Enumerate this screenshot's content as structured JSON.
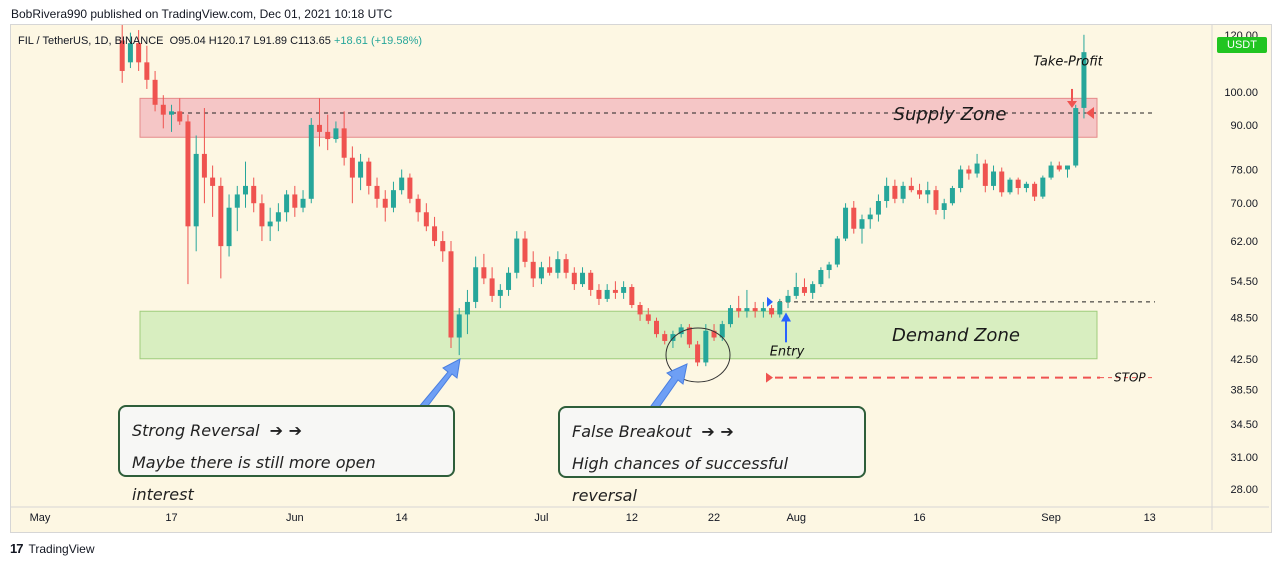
{
  "header": {
    "published_by": "BobRivera990 published on TradingView.com, Dec 01, 2021 10:18 UTC"
  },
  "ticker_line": {
    "symbol": "FIL / TetherUS, 1D, BINANCE",
    "ohlc": "O95.04 H120.17 L91.89 C113.65",
    "change": "+18.61 (+19.58%)"
  },
  "price_badge": "USDT",
  "footer": {
    "logo_glyph": "17",
    "brand": "TradingView"
  },
  "annotations": {
    "supply_zone": "Supply Zone",
    "demand_zone": "Demand Zone",
    "take_profit": "Take-Profit",
    "entry": "Entry",
    "stop": "STOP",
    "strong_reversal_title": "Strong Reversal",
    "strong_reversal_body": "Maybe there is still more open interest",
    "false_breakout_title": "False Breakout",
    "false_breakout_body": "High chances of successful reversal",
    "arrow_glyphs": "➔ ➔"
  },
  "colors": {
    "up": "#26a69a",
    "down": "#ef5350",
    "supply_fill": "#f5c6c6",
    "demand_fill": "#d8eec0",
    "background": "#fdf7e3",
    "callout_border": "#2e5e3a",
    "pointer": "#6e9ff5"
  },
  "chart_data": {
    "type": "candlestick",
    "symbol": "FIL / TetherUS",
    "interval": "1D",
    "exchange": "BINANCE",
    "y_scale": "log",
    "ylim": [
      26.5,
      124
    ],
    "y_ticks": [
      "120.00",
      "100.00",
      "90.00",
      "78.00",
      "70.00",
      "62.00",
      "54.50",
      "48.50",
      "42.50",
      "38.50",
      "34.50",
      "31.00",
      "28.00"
    ],
    "x_ticks": [
      "May",
      "17",
      "Jun",
      "14",
      "Jul",
      "12",
      "22",
      "Aug",
      "16",
      "Sep",
      "13"
    ],
    "zones": {
      "supply": [
        86.5,
        98.0
      ],
      "demand": [
        42.5,
        49.5
      ]
    },
    "levels": {
      "supply_line": 93.5,
      "entry": 51.0,
      "stop": 40.0,
      "take_profit": 95.0
    },
    "candles": [
      {
        "date": "2021-05-11",
        "o": 118.0,
        "h": 124.0,
        "l": 103.0,
        "c": 107.0
      },
      {
        "date": "2021-05-12",
        "o": 110.0,
        "h": 121.0,
        "l": 108.0,
        "c": 117.0
      },
      {
        "date": "2021-05-13",
        "o": 117.0,
        "h": 122.0,
        "l": 107.0,
        "c": 110.0
      },
      {
        "date": "2021-05-14",
        "o": 110.0,
        "h": 116.0,
        "l": 101.0,
        "c": 104.0
      },
      {
        "date": "2021-05-15",
        "o": 104.0,
        "h": 107.0,
        "l": 94.0,
        "c": 96.0
      },
      {
        "date": "2021-05-16",
        "o": 96.0,
        "h": 99.0,
        "l": 89.0,
        "c": 93.0
      },
      {
        "date": "2021-05-17",
        "o": 93.0,
        "h": 96.0,
        "l": 88.0,
        "c": 94.0
      },
      {
        "date": "2021-05-18",
        "o": 94.0,
        "h": 98.0,
        "l": 90.0,
        "c": 91.0
      },
      {
        "date": "2021-05-19",
        "o": 91.0,
        "h": 93.0,
        "l": 54.0,
        "c": 65.0
      },
      {
        "date": "2021-05-20",
        "o": 65.0,
        "h": 87.0,
        "l": 60.0,
        "c": 82.0
      },
      {
        "date": "2021-05-21",
        "o": 82.0,
        "h": 95.0,
        "l": 70.0,
        "c": 76.0
      },
      {
        "date": "2021-05-22",
        "o": 76.0,
        "h": 79.0,
        "l": 67.0,
        "c": 74.0
      },
      {
        "date": "2021-05-23",
        "o": 74.0,
        "h": 76.0,
        "l": 55.0,
        "c": 61.0
      },
      {
        "date": "2021-05-24",
        "o": 61.0,
        "h": 72.0,
        "l": 59.0,
        "c": 69.0
      },
      {
        "date": "2021-05-25",
        "o": 69.0,
        "h": 74.0,
        "l": 64.0,
        "c": 72.0
      },
      {
        "date": "2021-05-26",
        "o": 72.0,
        "h": 80.0,
        "l": 69.0,
        "c": 74.0
      },
      {
        "date": "2021-05-27",
        "o": 74.0,
        "h": 76.0,
        "l": 68.0,
        "c": 70.0
      },
      {
        "date": "2021-05-28",
        "o": 70.0,
        "h": 72.0,
        "l": 62.0,
        "c": 65.0
      },
      {
        "date": "2021-05-29",
        "o": 65.0,
        "h": 69.0,
        "l": 62.0,
        "c": 66.0
      },
      {
        "date": "2021-05-30",
        "o": 66.0,
        "h": 70.0,
        "l": 64.0,
        "c": 68.0
      },
      {
        "date": "2021-05-31",
        "o": 68.0,
        "h": 73.0,
        "l": 66.0,
        "c": 72.0
      },
      {
        "date": "2021-06-01",
        "o": 72.0,
        "h": 74.0,
        "l": 67.0,
        "c": 69.0
      },
      {
        "date": "2021-06-02",
        "o": 69.0,
        "h": 73.0,
        "l": 68.0,
        "c": 71.0
      },
      {
        "date": "2021-06-03",
        "o": 71.0,
        "h": 92.0,
        "l": 70.0,
        "c": 90.0
      },
      {
        "date": "2021-06-04",
        "o": 90.0,
        "h": 98.0,
        "l": 84.0,
        "c": 88.0
      },
      {
        "date": "2021-06-05",
        "o": 88.0,
        "h": 93.0,
        "l": 83.0,
        "c": 86.0
      },
      {
        "date": "2021-06-06",
        "o": 86.0,
        "h": 91.0,
        "l": 85.0,
        "c": 89.0
      },
      {
        "date": "2021-06-07",
        "o": 89.0,
        "h": 94.0,
        "l": 79.0,
        "c": 81.0
      },
      {
        "date": "2021-06-08",
        "o": 81.0,
        "h": 84.0,
        "l": 70.0,
        "c": 76.0
      },
      {
        "date": "2021-06-09",
        "o": 76.0,
        "h": 82.0,
        "l": 73.0,
        "c": 80.0
      },
      {
        "date": "2021-06-10",
        "o": 80.0,
        "h": 81.0,
        "l": 72.0,
        "c": 74.0
      },
      {
        "date": "2021-06-11",
        "o": 74.0,
        "h": 76.0,
        "l": 69.0,
        "c": 71.0
      },
      {
        "date": "2021-06-12",
        "o": 71.0,
        "h": 73.0,
        "l": 66.0,
        "c": 69.0
      },
      {
        "date": "2021-06-13",
        "o": 69.0,
        "h": 75.0,
        "l": 68.0,
        "c": 73.0
      },
      {
        "date": "2021-06-14",
        "o": 73.0,
        "h": 78.0,
        "l": 72.0,
        "c": 76.0
      },
      {
        "date": "2021-06-15",
        "o": 76.0,
        "h": 77.0,
        "l": 70.0,
        "c": 71.0
      },
      {
        "date": "2021-06-16",
        "o": 71.0,
        "h": 72.0,
        "l": 66.0,
        "c": 68.0
      },
      {
        "date": "2021-06-17",
        "o": 68.0,
        "h": 70.0,
        "l": 64.0,
        "c": 65.0
      },
      {
        "date": "2021-06-18",
        "o": 65.0,
        "h": 67.0,
        "l": 61.0,
        "c": 62.0
      },
      {
        "date": "2021-06-19",
        "o": 62.0,
        "h": 64.0,
        "l": 58.0,
        "c": 60.0
      },
      {
        "date": "2021-06-20",
        "o": 60.0,
        "h": 62.0,
        "l": 44.0,
        "c": 45.5
      },
      {
        "date": "2021-06-21",
        "o": 45.5,
        "h": 50.0,
        "l": 43.0,
        "c": 49.0
      },
      {
        "date": "2021-06-22",
        "o": 49.0,
        "h": 53.0,
        "l": 46.0,
        "c": 51.0
      },
      {
        "date": "2021-06-23",
        "o": 51.0,
        "h": 59.0,
        "l": 50.0,
        "c": 57.0
      },
      {
        "date": "2021-06-24",
        "o": 57.0,
        "h": 59.5,
        "l": 54.0,
        "c": 55.0
      },
      {
        "date": "2021-06-25",
        "o": 55.0,
        "h": 57.0,
        "l": 51.0,
        "c": 52.0
      },
      {
        "date": "2021-06-26",
        "o": 52.0,
        "h": 54.0,
        "l": 50.0,
        "c": 53.0
      },
      {
        "date": "2021-06-27",
        "o": 53.0,
        "h": 57.0,
        "l": 52.0,
        "c": 56.0
      },
      {
        "date": "2021-06-28",
        "o": 56.0,
        "h": 64.0,
        "l": 55.0,
        "c": 62.5
      },
      {
        "date": "2021-06-29",
        "o": 62.5,
        "h": 64.0,
        "l": 57.0,
        "c": 58.0
      },
      {
        "date": "2021-06-30",
        "o": 58.0,
        "h": 60.0,
        "l": 53.5,
        "c": 55.0
      },
      {
        "date": "2021-07-01",
        "o": 55.0,
        "h": 58.0,
        "l": 54.0,
        "c": 57.0
      },
      {
        "date": "2021-07-02",
        "o": 57.0,
        "h": 59.0,
        "l": 55.5,
        "c": 56.0
      },
      {
        "date": "2021-07-03",
        "o": 56.0,
        "h": 60.0,
        "l": 55.0,
        "c": 58.5
      },
      {
        "date": "2021-07-04",
        "o": 58.5,
        "h": 59.5,
        "l": 55.0,
        "c": 56.0
      },
      {
        "date": "2021-07-05",
        "o": 56.0,
        "h": 57.0,
        "l": 53.0,
        "c": 54.0
      },
      {
        "date": "2021-07-06",
        "o": 54.0,
        "h": 57.0,
        "l": 53.5,
        "c": 56.0
      },
      {
        "date": "2021-07-07",
        "o": 56.0,
        "h": 56.5,
        "l": 52.0,
        "c": 53.0
      },
      {
        "date": "2021-07-08",
        "o": 53.0,
        "h": 54.0,
        "l": 50.5,
        "c": 51.5
      },
      {
        "date": "2021-07-09",
        "o": 51.5,
        "h": 54.0,
        "l": 51.0,
        "c": 53.0
      },
      {
        "date": "2021-07-10",
        "o": 53.0,
        "h": 54.5,
        "l": 51.5,
        "c": 52.5
      },
      {
        "date": "2021-07-11",
        "o": 52.5,
        "h": 54.5,
        "l": 51.5,
        "c": 53.5
      },
      {
        "date": "2021-07-12",
        "o": 53.5,
        "h": 54.0,
        "l": 50.0,
        "c": 50.5
      },
      {
        "date": "2021-07-13",
        "o": 50.5,
        "h": 51.0,
        "l": 48.0,
        "c": 49.0
      },
      {
        "date": "2021-07-14",
        "o": 49.0,
        "h": 50.0,
        "l": 47.5,
        "c": 48.0
      },
      {
        "date": "2021-07-15",
        "o": 48.0,
        "h": 48.5,
        "l": 45.5,
        "c": 46.0
      },
      {
        "date": "2021-07-16",
        "o": 46.0,
        "h": 46.5,
        "l": 44.5,
        "c": 45.0
      },
      {
        "date": "2021-07-17",
        "o": 45.0,
        "h": 46.5,
        "l": 44.0,
        "c": 46.0
      },
      {
        "date": "2021-07-18",
        "o": 46.0,
        "h": 47.5,
        "l": 45.5,
        "c": 47.0
      },
      {
        "date": "2021-07-19",
        "o": 47.0,
        "h": 47.5,
        "l": 44.0,
        "c": 44.5
      },
      {
        "date": "2021-07-20",
        "o": 44.5,
        "h": 45.0,
        "l": 41.5,
        "c": 42.0
      },
      {
        "date": "2021-07-21",
        "o": 42.0,
        "h": 47.5,
        "l": 41.5,
        "c": 46.5
      },
      {
        "date": "2021-07-22",
        "o": 46.5,
        "h": 47.5,
        "l": 45.0,
        "c": 45.5
      },
      {
        "date": "2021-07-23",
        "o": 45.5,
        "h": 48.0,
        "l": 45.0,
        "c": 47.5
      },
      {
        "date": "2021-07-24",
        "o": 47.5,
        "h": 50.5,
        "l": 47.0,
        "c": 50.0
      },
      {
        "date": "2021-07-25",
        "o": 50.0,
        "h": 52.0,
        "l": 48.5,
        "c": 49.5
      },
      {
        "date": "2021-07-26",
        "o": 49.5,
        "h": 53.0,
        "l": 48.5,
        "c": 50.0
      },
      {
        "date": "2021-07-27",
        "o": 50.0,
        "h": 51.0,
        "l": 48.5,
        "c": 49.5
      },
      {
        "date": "2021-07-28",
        "o": 49.5,
        "h": 51.0,
        "l": 48.5,
        "c": 50.0
      },
      {
        "date": "2021-07-29",
        "o": 50.0,
        "h": 50.5,
        "l": 48.5,
        "c": 49.0
      },
      {
        "date": "2021-07-30",
        "o": 49.0,
        "h": 51.5,
        "l": 48.5,
        "c": 51.0
      },
      {
        "date": "2021-07-31",
        "o": 51.0,
        "h": 53.0,
        "l": 50.0,
        "c": 52.0
      },
      {
        "date": "2021-08-01",
        "o": 52.0,
        "h": 56.0,
        "l": 51.5,
        "c": 53.5
      },
      {
        "date": "2021-08-02",
        "o": 53.5,
        "h": 55.0,
        "l": 52.0,
        "c": 52.5
      },
      {
        "date": "2021-08-03",
        "o": 52.5,
        "h": 54.5,
        "l": 51.5,
        "c": 54.0
      },
      {
        "date": "2021-08-04",
        "o": 54.0,
        "h": 57.0,
        "l": 53.5,
        "c": 56.5
      },
      {
        "date": "2021-08-05",
        "o": 56.5,
        "h": 58.0,
        "l": 55.0,
        "c": 57.5
      },
      {
        "date": "2021-08-06",
        "o": 57.5,
        "h": 63.0,
        "l": 57.0,
        "c": 62.5
      },
      {
        "date": "2021-08-07",
        "o": 62.5,
        "h": 70.0,
        "l": 62.0,
        "c": 69.0
      },
      {
        "date": "2021-08-08",
        "o": 69.0,
        "h": 70.5,
        "l": 63.5,
        "c": 64.5
      },
      {
        "date": "2021-08-09",
        "o": 64.5,
        "h": 67.5,
        "l": 61.5,
        "c": 66.5
      },
      {
        "date": "2021-08-10",
        "o": 66.5,
        "h": 69.0,
        "l": 64.5,
        "c": 67.5
      },
      {
        "date": "2021-08-11",
        "o": 67.5,
        "h": 72.0,
        "l": 66.0,
        "c": 70.5
      },
      {
        "date": "2021-08-12",
        "o": 70.5,
        "h": 76.0,
        "l": 69.0,
        "c": 74.0
      },
      {
        "date": "2021-08-13",
        "o": 74.0,
        "h": 75.5,
        "l": 70.0,
        "c": 71.0
      },
      {
        "date": "2021-08-14",
        "o": 71.0,
        "h": 75.0,
        "l": 70.0,
        "c": 74.0
      },
      {
        "date": "2021-08-15",
        "o": 74.0,
        "h": 76.0,
        "l": 72.5,
        "c": 73.0
      },
      {
        "date": "2021-08-16",
        "o": 73.0,
        "h": 74.5,
        "l": 71.0,
        "c": 72.0
      },
      {
        "date": "2021-08-17",
        "o": 72.0,
        "h": 75.0,
        "l": 70.0,
        "c": 73.0
      },
      {
        "date": "2021-08-18",
        "o": 73.0,
        "h": 74.0,
        "l": 67.5,
        "c": 68.5
      },
      {
        "date": "2021-08-19",
        "o": 68.5,
        "h": 71.0,
        "l": 66.5,
        "c": 70.0
      },
      {
        "date": "2021-08-20",
        "o": 70.0,
        "h": 74.0,
        "l": 69.5,
        "c": 73.5
      },
      {
        "date": "2021-08-21",
        "o": 73.5,
        "h": 79.0,
        "l": 72.5,
        "c": 78.0
      },
      {
        "date": "2021-08-22",
        "o": 78.0,
        "h": 79.0,
        "l": 75.5,
        "c": 77.0
      },
      {
        "date": "2021-08-23",
        "o": 77.0,
        "h": 82.0,
        "l": 76.0,
        "c": 79.5
      },
      {
        "date": "2021-08-24",
        "o": 79.5,
        "h": 80.5,
        "l": 72.5,
        "c": 74.0
      },
      {
        "date": "2021-08-25",
        "o": 74.0,
        "h": 79.0,
        "l": 73.0,
        "c": 77.5
      },
      {
        "date": "2021-08-26",
        "o": 77.5,
        "h": 78.5,
        "l": 71.5,
        "c": 72.5
      },
      {
        "date": "2021-08-27",
        "o": 72.5,
        "h": 76.0,
        "l": 72.0,
        "c": 75.5
      },
      {
        "date": "2021-08-28",
        "o": 75.5,
        "h": 76.0,
        "l": 72.0,
        "c": 73.5
      },
      {
        "date": "2021-08-29",
        "o": 73.5,
        "h": 75.0,
        "l": 72.5,
        "c": 74.5
      },
      {
        "date": "2021-08-30",
        "o": 74.5,
        "h": 75.0,
        "l": 70.5,
        "c": 71.5
      },
      {
        "date": "2021-08-31",
        "o": 71.5,
        "h": 76.5,
        "l": 71.0,
        "c": 76.0
      },
      {
        "date": "2021-09-01",
        "o": 76.0,
        "h": 80.0,
        "l": 75.5,
        "c": 79.0
      },
      {
        "date": "2021-09-02",
        "o": 79.0,
        "h": 80.0,
        "l": 77.5,
        "c": 78.0
      },
      {
        "date": "2021-09-03",
        "o": 78.0,
        "h": 79.0,
        "l": 76.0,
        "c": 79.0
      },
      {
        "date": "2021-09-04",
        "o": 79.0,
        "h": 96.0,
        "l": 78.5,
        "c": 95.0
      },
      {
        "date": "2021-09-05",
        "o": 95.04,
        "h": 120.17,
        "l": 91.89,
        "c": 113.65
      }
    ]
  }
}
